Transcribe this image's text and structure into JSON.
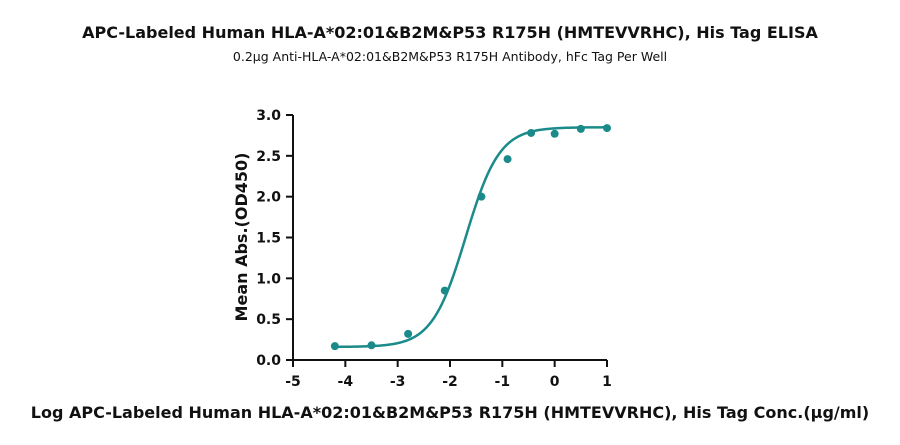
{
  "chart_data": {
    "type": "scatter",
    "title": "APC-Labeled Human HLA-A*02:01&B2M&P53 R175H (HMTEVVRHC), His Tag ELISA",
    "subtitle": "0.2μg Anti-HLA-A*02:01&B2M&P53 R175H Antibody, hFc Tag Per Well",
    "xlabel": "Log APC-Labeled Human HLA-A*02:01&B2M&P53 R175H (HMTEVVRHC), His Tag Conc.(μg/ml)",
    "ylabel": "Mean Abs.(OD450)",
    "xlim": [
      -5,
      1
    ],
    "ylim": [
      0,
      3
    ],
    "x_ticks": [
      "-5",
      "-4",
      "-3",
      "-2",
      "-1",
      "0",
      "1"
    ],
    "y_ticks": [
      "0.0",
      "0.5",
      "1.0",
      "1.5",
      "2.0",
      "2.5",
      "3.0"
    ],
    "grid": false,
    "color": "#1a8a8a",
    "series": [
      {
        "points": [
          {
            "x": -4.2,
            "y": 0.17
          },
          {
            "x": -3.5,
            "y": 0.18
          },
          {
            "x": -2.8,
            "y": 0.32
          },
          {
            "x": -2.1,
            "y": 0.85
          },
          {
            "x": -1.4,
            "y": 2.0
          },
          {
            "x": -0.9,
            "y": 2.46
          },
          {
            "x": -0.45,
            "y": 2.78
          },
          {
            "x": 0.0,
            "y": 2.77
          },
          {
            "x": 0.5,
            "y": 2.83
          },
          {
            "x": 1.0,
            "y": 2.84
          }
        ],
        "fit_curve": {
          "model": "4PL",
          "bottom": 0.16,
          "top": 2.85,
          "log_ec50": -1.7,
          "hill_slope": 1.35
        }
      }
    ]
  }
}
